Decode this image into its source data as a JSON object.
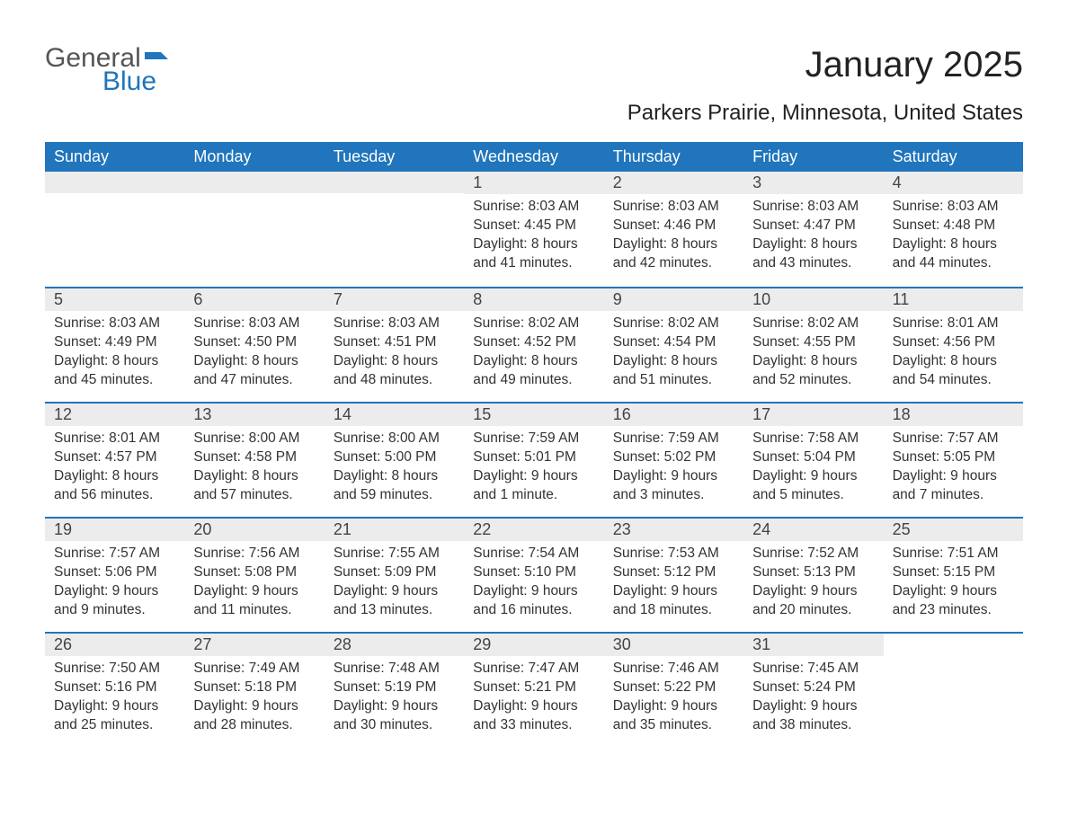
{
  "brand": {
    "general": "General",
    "blue": "Blue"
  },
  "title": "January 2025",
  "subtitle": "Parkers Prairie, Minnesota, United States",
  "colors": {
    "header_bg": "#2075bc",
    "header_text": "#ffffff",
    "row_divider": "#2075bc",
    "daynum_bg": "#ececec",
    "text": "#333333",
    "background": "#ffffff"
  },
  "daysOfWeek": [
    "Sunday",
    "Monday",
    "Tuesday",
    "Wednesday",
    "Thursday",
    "Friday",
    "Saturday"
  ],
  "weeks": [
    [
      {
        "n": "",
        "sunrise": "",
        "sunset": "",
        "daylight": ""
      },
      {
        "n": "",
        "sunrise": "",
        "sunset": "",
        "daylight": ""
      },
      {
        "n": "",
        "sunrise": "",
        "sunset": "",
        "daylight": ""
      },
      {
        "n": "1",
        "sunrise": "Sunrise: 8:03 AM",
        "sunset": "Sunset: 4:45 PM",
        "daylight": "Daylight: 8 hours and 41 minutes."
      },
      {
        "n": "2",
        "sunrise": "Sunrise: 8:03 AM",
        "sunset": "Sunset: 4:46 PM",
        "daylight": "Daylight: 8 hours and 42 minutes."
      },
      {
        "n": "3",
        "sunrise": "Sunrise: 8:03 AM",
        "sunset": "Sunset: 4:47 PM",
        "daylight": "Daylight: 8 hours and 43 minutes."
      },
      {
        "n": "4",
        "sunrise": "Sunrise: 8:03 AM",
        "sunset": "Sunset: 4:48 PM",
        "daylight": "Daylight: 8 hours and 44 minutes."
      }
    ],
    [
      {
        "n": "5",
        "sunrise": "Sunrise: 8:03 AM",
        "sunset": "Sunset: 4:49 PM",
        "daylight": "Daylight: 8 hours and 45 minutes."
      },
      {
        "n": "6",
        "sunrise": "Sunrise: 8:03 AM",
        "sunset": "Sunset: 4:50 PM",
        "daylight": "Daylight: 8 hours and 47 minutes."
      },
      {
        "n": "7",
        "sunrise": "Sunrise: 8:03 AM",
        "sunset": "Sunset: 4:51 PM",
        "daylight": "Daylight: 8 hours and 48 minutes."
      },
      {
        "n": "8",
        "sunrise": "Sunrise: 8:02 AM",
        "sunset": "Sunset: 4:52 PM",
        "daylight": "Daylight: 8 hours and 49 minutes."
      },
      {
        "n": "9",
        "sunrise": "Sunrise: 8:02 AM",
        "sunset": "Sunset: 4:54 PM",
        "daylight": "Daylight: 8 hours and 51 minutes."
      },
      {
        "n": "10",
        "sunrise": "Sunrise: 8:02 AM",
        "sunset": "Sunset: 4:55 PM",
        "daylight": "Daylight: 8 hours and 52 minutes."
      },
      {
        "n": "11",
        "sunrise": "Sunrise: 8:01 AM",
        "sunset": "Sunset: 4:56 PM",
        "daylight": "Daylight: 8 hours and 54 minutes."
      }
    ],
    [
      {
        "n": "12",
        "sunrise": "Sunrise: 8:01 AM",
        "sunset": "Sunset: 4:57 PM",
        "daylight": "Daylight: 8 hours and 56 minutes."
      },
      {
        "n": "13",
        "sunrise": "Sunrise: 8:00 AM",
        "sunset": "Sunset: 4:58 PM",
        "daylight": "Daylight: 8 hours and 57 minutes."
      },
      {
        "n": "14",
        "sunrise": "Sunrise: 8:00 AM",
        "sunset": "Sunset: 5:00 PM",
        "daylight": "Daylight: 8 hours and 59 minutes."
      },
      {
        "n": "15",
        "sunrise": "Sunrise: 7:59 AM",
        "sunset": "Sunset: 5:01 PM",
        "daylight": "Daylight: 9 hours and 1 minute."
      },
      {
        "n": "16",
        "sunrise": "Sunrise: 7:59 AM",
        "sunset": "Sunset: 5:02 PM",
        "daylight": "Daylight: 9 hours and 3 minutes."
      },
      {
        "n": "17",
        "sunrise": "Sunrise: 7:58 AM",
        "sunset": "Sunset: 5:04 PM",
        "daylight": "Daylight: 9 hours and 5 minutes."
      },
      {
        "n": "18",
        "sunrise": "Sunrise: 7:57 AM",
        "sunset": "Sunset: 5:05 PM",
        "daylight": "Daylight: 9 hours and 7 minutes."
      }
    ],
    [
      {
        "n": "19",
        "sunrise": "Sunrise: 7:57 AM",
        "sunset": "Sunset: 5:06 PM",
        "daylight": "Daylight: 9 hours and 9 minutes."
      },
      {
        "n": "20",
        "sunrise": "Sunrise: 7:56 AM",
        "sunset": "Sunset: 5:08 PM",
        "daylight": "Daylight: 9 hours and 11 minutes."
      },
      {
        "n": "21",
        "sunrise": "Sunrise: 7:55 AM",
        "sunset": "Sunset: 5:09 PM",
        "daylight": "Daylight: 9 hours and 13 minutes."
      },
      {
        "n": "22",
        "sunrise": "Sunrise: 7:54 AM",
        "sunset": "Sunset: 5:10 PM",
        "daylight": "Daylight: 9 hours and 16 minutes."
      },
      {
        "n": "23",
        "sunrise": "Sunrise: 7:53 AM",
        "sunset": "Sunset: 5:12 PM",
        "daylight": "Daylight: 9 hours and 18 minutes."
      },
      {
        "n": "24",
        "sunrise": "Sunrise: 7:52 AM",
        "sunset": "Sunset: 5:13 PM",
        "daylight": "Daylight: 9 hours and 20 minutes."
      },
      {
        "n": "25",
        "sunrise": "Sunrise: 7:51 AM",
        "sunset": "Sunset: 5:15 PM",
        "daylight": "Daylight: 9 hours and 23 minutes."
      }
    ],
    [
      {
        "n": "26",
        "sunrise": "Sunrise: 7:50 AM",
        "sunset": "Sunset: 5:16 PM",
        "daylight": "Daylight: 9 hours and 25 minutes."
      },
      {
        "n": "27",
        "sunrise": "Sunrise: 7:49 AM",
        "sunset": "Sunset: 5:18 PM",
        "daylight": "Daylight: 9 hours and 28 minutes."
      },
      {
        "n": "28",
        "sunrise": "Sunrise: 7:48 AM",
        "sunset": "Sunset: 5:19 PM",
        "daylight": "Daylight: 9 hours and 30 minutes."
      },
      {
        "n": "29",
        "sunrise": "Sunrise: 7:47 AM",
        "sunset": "Sunset: 5:21 PM",
        "daylight": "Daylight: 9 hours and 33 minutes."
      },
      {
        "n": "30",
        "sunrise": "Sunrise: 7:46 AM",
        "sunset": "Sunset: 5:22 PM",
        "daylight": "Daylight: 9 hours and 35 minutes."
      },
      {
        "n": "31",
        "sunrise": "Sunrise: 7:45 AM",
        "sunset": "Sunset: 5:24 PM",
        "daylight": "Daylight: 9 hours and 38 minutes."
      },
      {
        "n": "",
        "sunrise": "",
        "sunset": "",
        "daylight": ""
      }
    ]
  ]
}
